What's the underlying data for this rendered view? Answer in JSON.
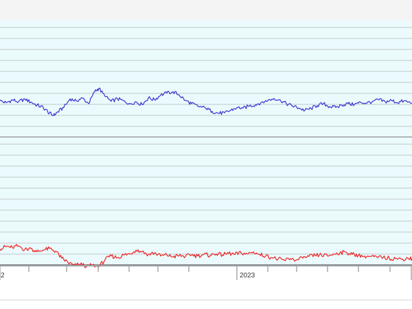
{
  "chart_data": {
    "type": "line",
    "x_axis": {
      "tick_labels": [
        "2",
        "2023"
      ],
      "minor_tick_count": 13
    },
    "grid": true,
    "panels": [
      {
        "name_visible": false,
        "series": [
          {
            "color": "#3b2fd0",
            "points": [
              [
                0,
                0.36
              ],
              [
                0.015,
                0.32
              ],
              [
                0.03,
                0.38
              ],
              [
                0.045,
                0.34
              ],
              [
                0.06,
                0.4
              ],
              [
                0.075,
                0.33
              ],
              [
                0.09,
                0.27
              ],
              [
                0.105,
                0.22
              ],
              [
                0.12,
                0.1
              ],
              [
                0.13,
                0.05
              ],
              [
                0.14,
                0.13
              ],
              [
                0.155,
                0.22
              ],
              [
                0.17,
                0.4
              ],
              [
                0.185,
                0.36
              ],
              [
                0.2,
                0.42
              ],
              [
                0.215,
                0.3
              ],
              [
                0.23,
                0.55
              ],
              [
                0.24,
                0.62
              ],
              [
                0.255,
                0.45
              ],
              [
                0.27,
                0.35
              ],
              [
                0.285,
                0.4
              ],
              [
                0.3,
                0.36
              ],
              [
                0.315,
                0.3
              ],
              [
                0.33,
                0.34
              ],
              [
                0.345,
                0.28
              ],
              [
                0.36,
                0.42
              ],
              [
                0.375,
                0.38
              ],
              [
                0.39,
                0.48
              ],
              [
                0.405,
                0.52
              ],
              [
                0.42,
                0.55
              ],
              [
                0.435,
                0.48
              ],
              [
                0.45,
                0.37
              ],
              [
                0.465,
                0.3
              ],
              [
                0.48,
                0.25
              ],
              [
                0.5,
                0.2
              ],
              [
                0.515,
                0.14
              ],
              [
                0.53,
                0.1
              ],
              [
                0.545,
                0.11
              ],
              [
                0.56,
                0.16
              ],
              [
                0.575,
                0.22
              ],
              [
                0.59,
                0.21
              ],
              [
                0.605,
                0.25
              ],
              [
                0.62,
                0.28
              ],
              [
                0.635,
                0.33
              ],
              [
                0.65,
                0.36
              ],
              [
                0.665,
                0.41
              ],
              [
                0.68,
                0.38
              ],
              [
                0.695,
                0.3
              ],
              [
                0.71,
                0.25
              ],
              [
                0.725,
                0.21
              ],
              [
                0.74,
                0.16
              ],
              [
                0.755,
                0.2
              ],
              [
                0.77,
                0.26
              ],
              [
                0.785,
                0.3
              ],
              [
                0.8,
                0.24
              ],
              [
                0.815,
                0.22
              ],
              [
                0.83,
                0.27
              ],
              [
                0.845,
                0.3
              ],
              [
                0.86,
                0.28
              ],
              [
                0.875,
                0.33
              ],
              [
                0.89,
                0.31
              ],
              [
                0.905,
                0.35
              ],
              [
                0.92,
                0.38
              ],
              [
                0.935,
                0.34
              ],
              [
                0.95,
                0.37
              ],
              [
                0.965,
                0.32
              ],
              [
                0.98,
                0.36
              ],
              [
                1.0,
                0.31
              ]
            ]
          }
        ]
      },
      {
        "name_visible": false,
        "series": [
          {
            "color": "#ee2020",
            "points": [
              [
                0,
                0.35
              ],
              [
                0.015,
                0.4
              ],
              [
                0.03,
                0.38
              ],
              [
                0.045,
                0.41
              ],
              [
                0.06,
                0.34
              ],
              [
                0.075,
                0.36
              ],
              [
                0.09,
                0.3
              ],
              [
                0.105,
                0.33
              ],
              [
                0.12,
                0.36
              ],
              [
                0.135,
                0.31
              ],
              [
                0.15,
                0.18
              ],
              [
                0.165,
                0.1
              ],
              [
                0.18,
                0.04
              ],
              [
                0.195,
                0.07
              ],
              [
                0.21,
                0.03
              ],
              [
                0.225,
                0.05
              ],
              [
                0.24,
                0.02
              ],
              [
                0.255,
                0.15
              ],
              [
                0.27,
                0.22
              ],
              [
                0.285,
                0.19
              ],
              [
                0.3,
                0.24
              ],
              [
                0.315,
                0.26
              ],
              [
                0.33,
                0.33
              ],
              [
                0.345,
                0.3
              ],
              [
                0.36,
                0.25
              ],
              [
                0.375,
                0.28
              ],
              [
                0.39,
                0.22
              ],
              [
                0.405,
                0.24
              ],
              [
                0.42,
                0.2
              ],
              [
                0.435,
                0.23
              ],
              [
                0.45,
                0.21
              ],
              [
                0.465,
                0.24
              ],
              [
                0.48,
                0.22
              ],
              [
                0.495,
                0.25
              ],
              [
                0.51,
                0.23
              ],
              [
                0.525,
                0.26
              ],
              [
                0.54,
                0.24
              ],
              [
                0.555,
                0.27
              ],
              [
                0.57,
                0.25
              ],
              [
                0.585,
                0.28
              ],
              [
                0.6,
                0.26
              ],
              [
                0.615,
                0.3
              ],
              [
                0.63,
                0.25
              ],
              [
                0.645,
                0.22
              ],
              [
                0.66,
                0.19
              ],
              [
                0.675,
                0.16
              ],
              [
                0.69,
                0.14
              ],
              [
                0.705,
                0.17
              ],
              [
                0.72,
                0.15
              ],
              [
                0.735,
                0.18
              ],
              [
                0.75,
                0.21
              ],
              [
                0.765,
                0.23
              ],
              [
                0.78,
                0.24
              ],
              [
                0.795,
                0.22
              ],
              [
                0.81,
                0.26
              ],
              [
                0.825,
                0.28
              ],
              [
                0.84,
                0.29
              ],
              [
                0.855,
                0.25
              ],
              [
                0.87,
                0.23
              ],
              [
                0.885,
                0.22
              ],
              [
                0.9,
                0.21
              ],
              [
                0.915,
                0.2
              ],
              [
                0.93,
                0.19
              ],
              [
                0.945,
                0.18
              ],
              [
                0.96,
                0.17
              ],
              [
                0.975,
                0.16
              ],
              [
                0.99,
                0.18
              ],
              [
                1.0,
                0.17
              ]
            ]
          }
        ]
      }
    ]
  },
  "colors": {
    "panel_bg": "#ebfbfd",
    "grid": "#c0c4c8",
    "border": "#9ea3a8",
    "separator": "#7a7a7a"
  }
}
